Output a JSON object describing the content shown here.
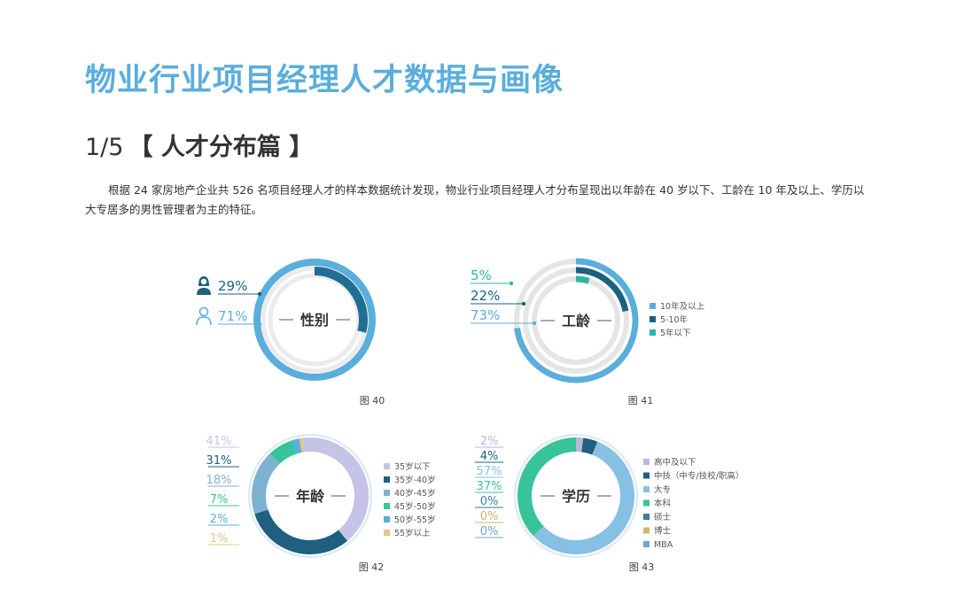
{
  "page": {
    "title": "物业行业项目经理人才数据与画像",
    "section_number": "1/5",
    "section_title": "【 人才分布篇 】",
    "intro": "根据 24 家房地产企业共 526 名项目经理人才的样本数据统计发现，物业行业项目经理人才分布呈现出以年龄在 40 岁以下、工龄在 10 年及以上、学历以大专居多的男性管理者为主的特征。"
  },
  "chart_data": [
    {
      "type": "pie",
      "id": "gender",
      "center_label": "性别",
      "caption": "图 40",
      "series": [
        {
          "icon": "female-user-icon",
          "value": 29,
          "label": "29%",
          "color": "#1f6e95"
        },
        {
          "icon": "male-user-icon",
          "value": 71,
          "label": "71%",
          "color": "#5aaedb"
        }
      ]
    },
    {
      "type": "pie",
      "id": "tenure",
      "center_label": "工龄",
      "caption": "图 41",
      "series": [
        {
          "name": "10年及以上",
          "value": 73,
          "label": "73%",
          "color": "#5aaedb"
        },
        {
          "name": "5-10年",
          "value": 22,
          "label": "22%",
          "color": "#1f5f80"
        },
        {
          "name": "5年以下",
          "value": 5,
          "label": "5%",
          "color": "#2bb5a6"
        }
      ]
    },
    {
      "type": "pie",
      "id": "age",
      "center_label": "年龄",
      "caption": "图 42",
      "series": [
        {
          "name": "35岁以下",
          "value": 41,
          "label": "41%",
          "color": "#c5c4e6"
        },
        {
          "name": "35岁-40岁",
          "value": 31,
          "label": "31%",
          "color": "#1f5f80"
        },
        {
          "name": "40岁-45岁",
          "value": 18,
          "label": "18%",
          "color": "#7fb2d2"
        },
        {
          "name": "45岁-50岁",
          "value": 7,
          "label": "7%",
          "color": "#38c49a"
        },
        {
          "name": "50岁-55岁",
          "value": 2,
          "label": "2%",
          "color": "#5aaedb"
        },
        {
          "name": "55岁以上",
          "value": 1,
          "label": "1%",
          "color": "#e6c48a"
        }
      ]
    },
    {
      "type": "pie",
      "id": "education",
      "center_label": "学历",
      "caption": "图 43",
      "series": [
        {
          "name": "高中及以下",
          "value": 2,
          "label": "2%",
          "color": "#b9b6de"
        },
        {
          "name": "中技（中专/技校/职高）",
          "value": 4,
          "label": "4%",
          "color": "#1f5f80"
        },
        {
          "name": "大专",
          "value": 57,
          "label": "57%",
          "color": "#86c0e3"
        },
        {
          "name": "本科",
          "value": 37,
          "label": "37%",
          "color": "#38c49a"
        },
        {
          "name": "硕士",
          "value": 0,
          "label": "0%",
          "color": "#3d7f97"
        },
        {
          "name": "博士",
          "value": 0,
          "label": "0%",
          "color": "#d4b271"
        },
        {
          "name": "MBA",
          "value": 0,
          "label": "0%",
          "color": "#6fa8c8"
        }
      ]
    }
  ]
}
